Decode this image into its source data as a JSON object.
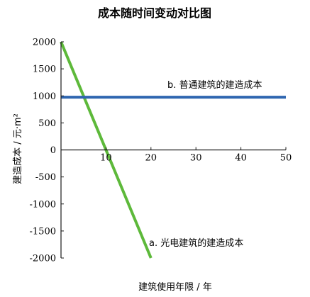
{
  "chart_data": {
    "type": "line",
    "title": "成本随时间变动对比图",
    "xlabel": "建筑使用年限 / 年",
    "ylabel": "建造成本 / 元·m²",
    "xlim": [
      0,
      50
    ],
    "ylim": [
      -2000,
      2000
    ],
    "xticks": [
      10,
      20,
      30,
      40,
      50
    ],
    "yticks": [
      2000,
      1500,
      1000,
      500,
      0,
      -500,
      -1000,
      -1500,
      -2000
    ],
    "grid": false,
    "legend": "none",
    "series": [
      {
        "name": "a. 光电建筑的建造成本",
        "color": "#5db93a",
        "x": [
          0,
          20
        ],
        "y": [
          2000,
          -2000
        ]
      },
      {
        "name": "b. 普通建筑的建造成本",
        "color": "#2f66b0",
        "x": [
          0,
          50
        ],
        "y": [
          975,
          975
        ]
      }
    ]
  }
}
